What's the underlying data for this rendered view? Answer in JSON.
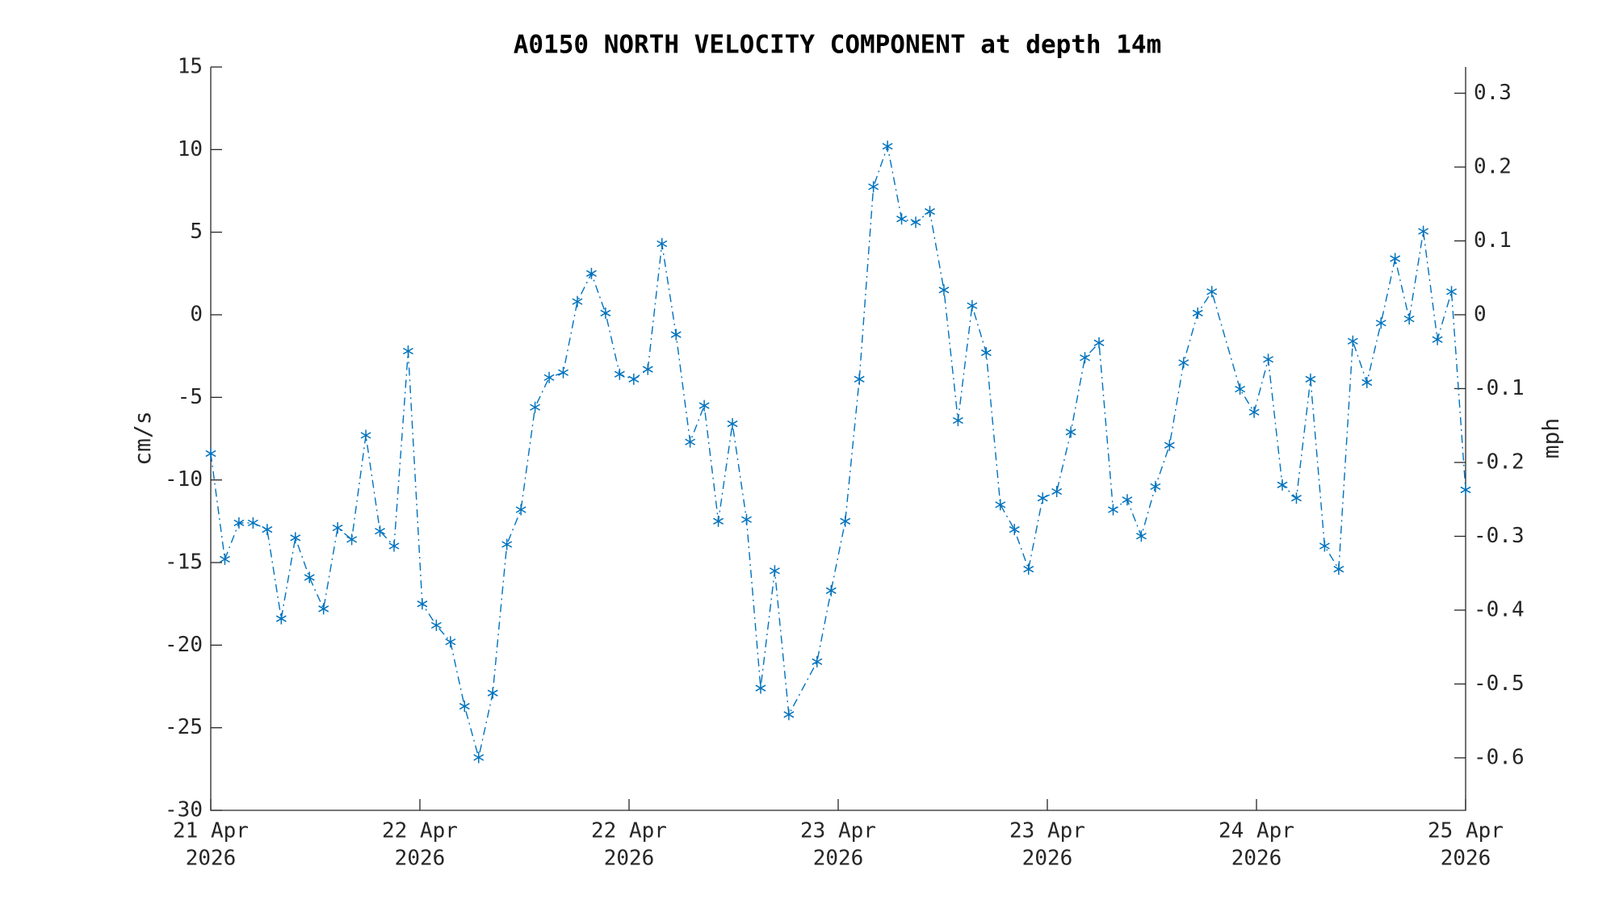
{
  "chart_data": {
    "type": "line",
    "title": "A0150 NORTH VELOCITY COMPONENT at depth 14m",
    "ylabel": "cm/s",
    "y2label": "mph",
    "color": "#0072bd",
    "marker": "*",
    "linestyle": "-.",
    "x": [
      0,
      1,
      2,
      3,
      4,
      5,
      6,
      7,
      8,
      9,
      10,
      11,
      12,
      13,
      14,
      15,
      16,
      17,
      18,
      19,
      20,
      21,
      22,
      23,
      24,
      25,
      26,
      27,
      28,
      29,
      30,
      31,
      32,
      33,
      34,
      35,
      36,
      37,
      38,
      39,
      40,
      41,
      43,
      44,
      45,
      46,
      47,
      48,
      49,
      50,
      51,
      52,
      53,
      54,
      55,
      56,
      57,
      58,
      59,
      60,
      61,
      62,
      63,
      64,
      65,
      66,
      67,
      68,
      69,
      70,
      71,
      73,
      74,
      75,
      76,
      77,
      78,
      79,
      80,
      81,
      82,
      83,
      84,
      85,
      86,
      87,
      88,
      89
    ],
    "values": [
      -8.4,
      -14.8,
      -12.6,
      -12.6,
      -13.0,
      -18.4,
      -13.5,
      -15.9,
      -17.8,
      -12.9,
      -13.6,
      -7.3,
      -13.1,
      -14.0,
      -2.2,
      -17.5,
      -18.8,
      -19.8,
      -23.7,
      -26.8,
      -22.9,
      -13.9,
      -11.8,
      -5.6,
      -3.8,
      -3.5,
      0.8,
      2.5,
      0.1,
      -3.6,
      -3.9,
      -3.3,
      4.3,
      -1.2,
      -7.7,
      -5.5,
      -12.5,
      -6.6,
      -12.4,
      -22.6,
      -15.5,
      -24.2,
      -21.0,
      -16.7,
      -12.5,
      -3.9,
      7.75,
      10.2,
      5.8,
      5.6,
      6.25,
      1.5,
      -6.4,
      0.55,
      -2.3,
      -11.5,
      -13.0,
      -15.4,
      -11.1,
      -10.7,
      -7.1,
      -2.6,
      -1.7,
      -11.8,
      -11.2,
      -13.4,
      -10.4,
      -7.9,
      -2.9,
      0.1,
      1.4,
      -4.5,
      -5.9,
      -2.7,
      -10.3,
      -11.1,
      -3.9,
      -14.0,
      -15.4,
      -1.6,
      -4.1,
      -0.5,
      3.4,
      -0.25,
      5.05,
      -1.5,
      1.4,
      -10.6
    ],
    "xlim": [
      0,
      89
    ],
    "xticks": [
      {
        "value": 0,
        "label": [
          "21 Apr",
          "2026"
        ]
      },
      {
        "value": 14.833,
        "label": [
          "22 Apr",
          "2026"
        ]
      },
      {
        "value": 29.667,
        "label": [
          "22 Apr",
          "2026"
        ]
      },
      {
        "value": 44.5,
        "label": [
          "23 Apr",
          "2026"
        ]
      },
      {
        "value": 59.333,
        "label": [
          "23 Apr",
          "2026"
        ]
      },
      {
        "value": 74.167,
        "label": [
          "24 Apr",
          "2026"
        ]
      },
      {
        "value": 89,
        "label": [
          "25 Apr",
          "2026"
        ]
      }
    ],
    "ylim": [
      -30,
      15
    ],
    "yticks": [
      -30,
      -25,
      -20,
      -15,
      -10,
      -5,
      0,
      5,
      10,
      15
    ],
    "y2lim": [
      -0.6711,
      0.3355
    ],
    "y2ticks": [
      -0.6,
      -0.5,
      -0.4,
      -0.3,
      -0.2,
      -0.1,
      0,
      0.1,
      0.2,
      0.3
    ],
    "grid": false
  }
}
